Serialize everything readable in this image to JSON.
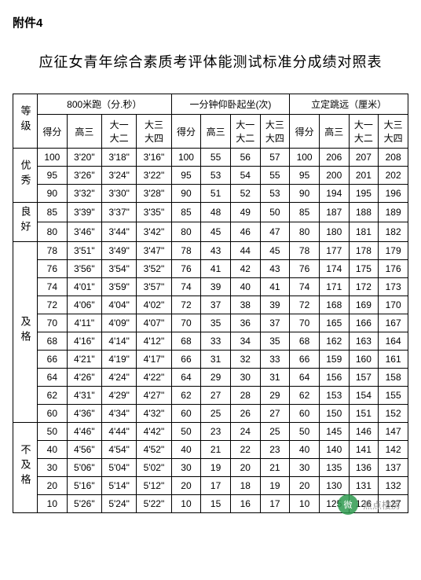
{
  "attachment_label": "附件4",
  "title": "应征女青年综合素质考评体能测试标准分成绩对照表",
  "headers": {
    "grade": "等级",
    "sections": [
      {
        "title": "800米跑（分.秒）",
        "cols": [
          "得分",
          "高三",
          "大一大二",
          "大三大四"
        ]
      },
      {
        "title": "一分钟仰卧起坐(次)",
        "cols": [
          "得分",
          "高三",
          "大一大二",
          "大三大四"
        ]
      },
      {
        "title": "立定跳远（厘米）",
        "cols": [
          "得分",
          "高三",
          "大一大二",
          "大三大四"
        ]
      }
    ]
  },
  "grades": [
    {
      "label": "优秀",
      "rows": [
        [
          100,
          "3'20\"",
          "3'18\"",
          "3'16\"",
          100,
          55,
          56,
          57,
          100,
          206,
          207,
          208
        ],
        [
          95,
          "3'26\"",
          "3'24\"",
          "3'22\"",
          95,
          53,
          54,
          55,
          95,
          200,
          201,
          202
        ],
        [
          90,
          "3'32\"",
          "3'30\"",
          "3'28\"",
          90,
          51,
          52,
          53,
          90,
          194,
          195,
          196
        ]
      ]
    },
    {
      "label": "良好",
      "rows": [
        [
          85,
          "3'39\"",
          "3'37\"",
          "3'35\"",
          85,
          48,
          49,
          50,
          85,
          187,
          188,
          189
        ],
        [
          80,
          "3'46\"",
          "3'44\"",
          "3'42\"",
          80,
          45,
          46,
          47,
          80,
          180,
          181,
          182
        ]
      ]
    },
    {
      "label": "及格",
      "rows": [
        [
          78,
          "3'51\"",
          "3'49\"",
          "3'47\"",
          78,
          43,
          44,
          45,
          78,
          177,
          178,
          179
        ],
        [
          76,
          "3'56\"",
          "3'54\"",
          "3'52\"",
          76,
          41,
          42,
          43,
          76,
          174,
          175,
          176
        ],
        [
          74,
          "4'01\"",
          "3'59\"",
          "3'57\"",
          74,
          39,
          40,
          41,
          74,
          171,
          172,
          173
        ],
        [
          72,
          "4'06\"",
          "4'04\"",
          "4'02\"",
          72,
          37,
          38,
          39,
          72,
          168,
          169,
          170
        ],
        [
          70,
          "4'11\"",
          "4'09\"",
          "4'07\"",
          70,
          35,
          36,
          37,
          70,
          165,
          166,
          167
        ],
        [
          68,
          "4'16\"",
          "4'14\"",
          "4'12\"",
          68,
          33,
          34,
          35,
          68,
          162,
          163,
          164
        ],
        [
          66,
          "4'21\"",
          "4'19\"",
          "4'17\"",
          66,
          31,
          32,
          33,
          66,
          159,
          160,
          161
        ],
        [
          64,
          "4'26\"",
          "4'24\"",
          "4'22\"",
          64,
          29,
          30,
          31,
          64,
          156,
          157,
          158
        ],
        [
          62,
          "4'31\"",
          "4'29\"",
          "4'27\"",
          62,
          27,
          28,
          29,
          62,
          153,
          154,
          155
        ],
        [
          60,
          "4'36\"",
          "4'34\"",
          "4'32\"",
          60,
          25,
          26,
          27,
          60,
          150,
          151,
          152
        ]
      ]
    },
    {
      "label": "不及格",
      "rows": [
        [
          50,
          "4'46\"",
          "4'44\"",
          "4'42\"",
          50,
          23,
          24,
          25,
          50,
          145,
          146,
          147
        ],
        [
          40,
          "4'56\"",
          "4'54\"",
          "4'52\"",
          40,
          21,
          22,
          23,
          40,
          140,
          141,
          142
        ],
        [
          30,
          "5'06\"",
          "5'04\"",
          "5'02\"",
          30,
          19,
          20,
          21,
          30,
          135,
          136,
          137
        ],
        [
          20,
          "5'16\"",
          "5'14\"",
          "5'12\"",
          20,
          17,
          18,
          19,
          20,
          130,
          131,
          132
        ],
        [
          10,
          "5'26\"",
          "5'24\"",
          "5'22\"",
          10,
          15,
          16,
          17,
          10,
          125,
          126,
          127
        ]
      ]
    }
  ],
  "watermark": {
    "icon_text": "微",
    "text": "焦点楼房"
  },
  "style": {
    "bg": "#ffffff",
    "text": "#000000",
    "border": "#000000",
    "font_body": 12,
    "font_title": 18
  }
}
